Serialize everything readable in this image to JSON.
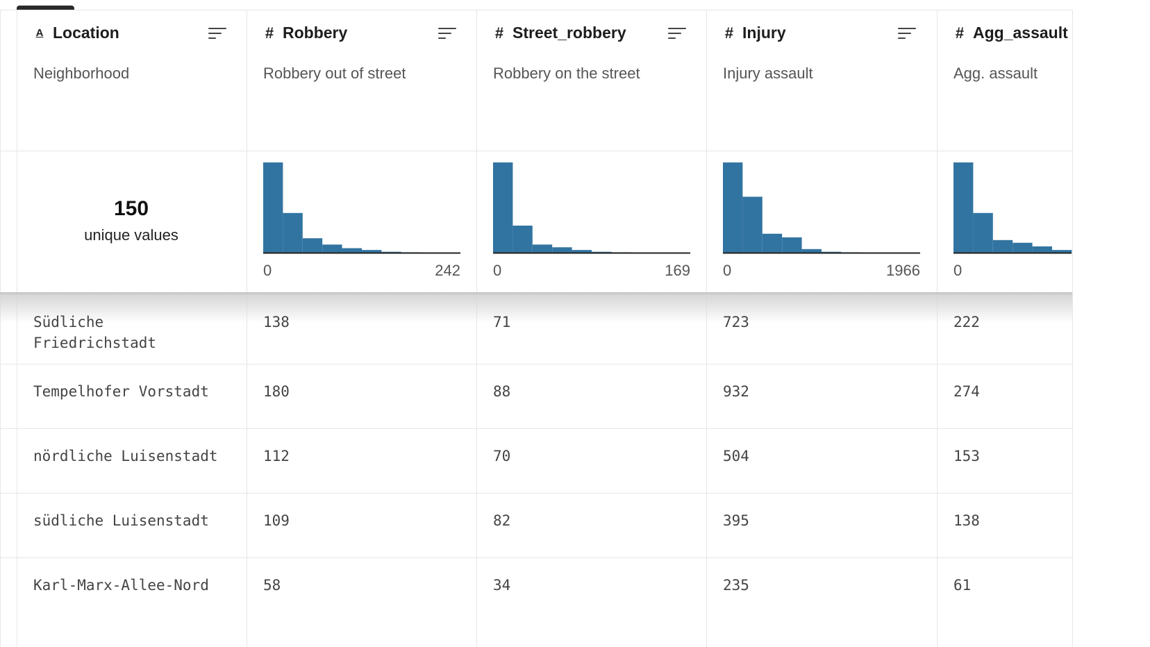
{
  "table": {
    "columns": [
      {
        "type_icon": "A",
        "type_name": "text-type-icon",
        "title": "Location",
        "description": "Neighborhood",
        "summary": {
          "kind": "unique",
          "count": "150",
          "label": "unique values"
        }
      },
      {
        "type_icon": "#",
        "type_name": "number-type-icon",
        "title": "Robbery",
        "description": "Robbery out of street",
        "summary": {
          "kind": "histogram",
          "min": "0",
          "max": "242",
          "bins": [
            1,
            0.44,
            0.16,
            0.09,
            0.05,
            0.03,
            0.01,
            0.005,
            0.003,
            0.002
          ]
        }
      },
      {
        "type_icon": "#",
        "type_name": "number-type-icon",
        "title": "Street_robbery",
        "description": "Robbery on the street",
        "summary": {
          "kind": "histogram",
          "min": "0",
          "max": "169",
          "bins": [
            1,
            0.3,
            0.09,
            0.06,
            0.03,
            0.01,
            0.005,
            0.003,
            0.002,
            0.001
          ]
        }
      },
      {
        "type_icon": "#",
        "type_name": "number-type-icon",
        "title": "Injury",
        "description": "Injury assault",
        "summary": {
          "kind": "histogram",
          "min": "0",
          "max": "1966",
          "bins": [
            1,
            0.62,
            0.21,
            0.17,
            0.04,
            0.01,
            0.005,
            0.003,
            0.002,
            0.001
          ]
        }
      },
      {
        "type_icon": "#",
        "type_name": "number-type-icon",
        "title": "Agg_assault",
        "description": "Agg. assault",
        "summary": {
          "kind": "histogram",
          "min": "0",
          "max": "",
          "bins": [
            1,
            0.44,
            0.14,
            0.11,
            0.07,
            0.03
          ]
        }
      }
    ],
    "rows": [
      [
        "Südliche Friedrichstadt",
        "138",
        "71",
        "723",
        "222"
      ],
      [
        "Tempelhofer Vorstadt",
        "180",
        "88",
        "932",
        "274"
      ],
      [
        "nördliche Luisenstadt",
        "112",
        "70",
        "504",
        "153"
      ],
      [
        "südliche Luisenstadt",
        "109",
        "82",
        "395",
        "138"
      ],
      [
        "Karl-Marx-Allee-Nord",
        "58",
        "34",
        "235",
        "61"
      ]
    ]
  },
  "colors": {
    "bar": "#3274a1",
    "grid": "#e6e6e6"
  }
}
